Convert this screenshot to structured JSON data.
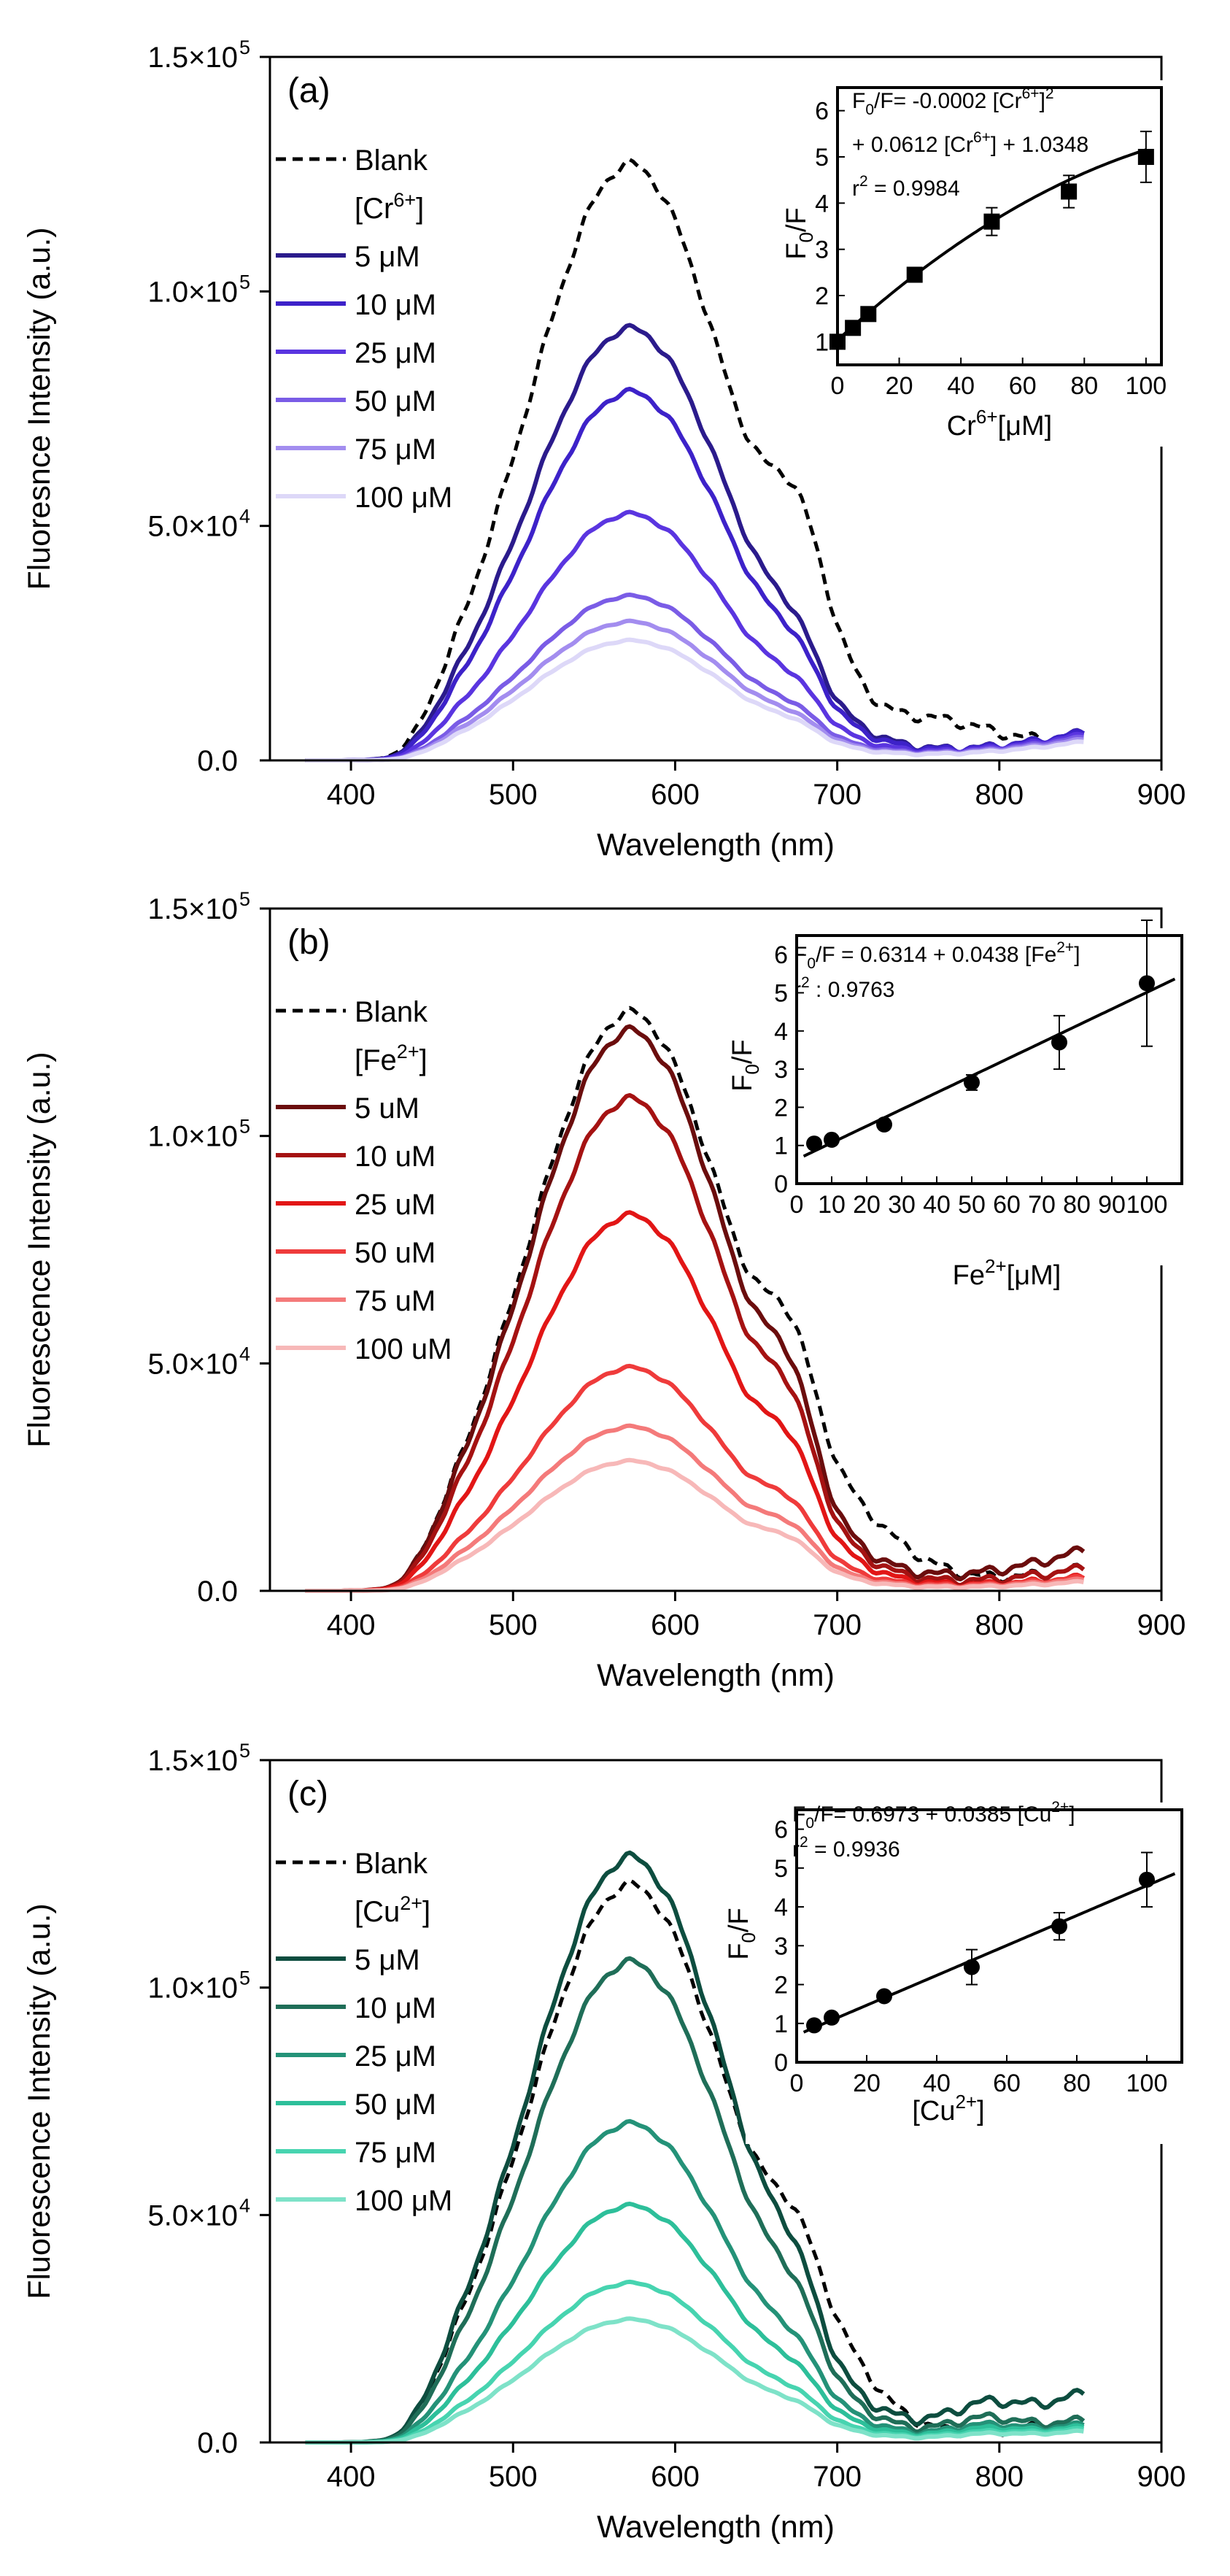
{
  "chart_data": [
    {
      "type": "line",
      "panel_label": "(a)",
      "xlabel": "Wavelength (nm)",
      "ylabel": "Fluoresnce Intensity (a.u.)",
      "xlim": [
        350,
        900
      ],
      "ylim": [
        0,
        150000
      ],
      "xticks": [
        400,
        500,
        600,
        700,
        800,
        900
      ],
      "yticks": [
        {
          "value": 0,
          "label": "0.0"
        },
        {
          "value": 50000,
          "label": "5.0×10",
          "exp": "4"
        },
        {
          "value": 100000,
          "label": "1.0×10",
          "exp": "5"
        },
        {
          "value": 150000,
          "label": "1.5×10",
          "exp": "5"
        }
      ],
      "legend": {
        "blank_label": "Blank",
        "header": {
          "pre": "[Cr",
          "sup": "6+",
          "post": "]"
        },
        "entries": [
          "5 μM",
          "10 μM",
          "25 μM",
          "50 μM",
          "75 μM",
          "100 μM"
        ]
      },
      "blank": {
        "name": "Blank",
        "color": "#000000",
        "peak": 127000,
        "end": 5000,
        "curve": "a_blank"
      },
      "series": [
        {
          "name": "5 μM",
          "color": "#2b1b8c",
          "peak": 92000,
          "end": 6000,
          "curve": "a"
        },
        {
          "name": "10 μM",
          "color": "#3d22c9",
          "peak": 78500,
          "end": 6000,
          "curve": "a"
        },
        {
          "name": "25 μM",
          "color": "#5a35e0",
          "peak": 52500,
          "end": 5500,
          "curve": "a"
        },
        {
          "name": "50 μM",
          "color": "#7a5ce6",
          "peak": 35000,
          "end": 5000,
          "curve": "a"
        },
        {
          "name": "75 μM",
          "color": "#a38def",
          "peak": 29500,
          "end": 4500,
          "curve": "a"
        },
        {
          "name": "100 μM",
          "color": "#ddd8f8",
          "peak": 25500,
          "end": 4000,
          "curve": "a"
        }
      ],
      "inset": {
        "type": "scatter",
        "xlabel": {
          "pre": "Cr",
          "sup": "6+",
          "post": "[μM]"
        },
        "ylabel": {
          "pre": "F",
          "sub": "0",
          "post": "/F"
        },
        "xlim": [
          0,
          105
        ],
        "ylim": [
          0.5,
          6.5
        ],
        "xticks": [
          0,
          20,
          40,
          60,
          80,
          100
        ],
        "yticks": [
          1,
          2,
          3,
          4,
          5,
          6
        ],
        "marker": "square",
        "x": [
          0,
          5,
          10,
          25,
          50,
          75,
          100
        ],
        "y": [
          1.0,
          1.3,
          1.6,
          2.45,
          3.6,
          4.25,
          5.0
        ],
        "err": [
          0.12,
          0.1,
          0.1,
          0.15,
          0.3,
          0.35,
          0.55
        ],
        "fit": {
          "kind": "quadratic",
          "a": -0.0002,
          "b": 0.0612,
          "c": 1.0348
        },
        "equation_lines": [
          [
            {
              "t": "F"
            },
            {
              "t": "0",
              "s": "sub"
            },
            {
              "t": "/F= -0.0002 [Cr"
            },
            {
              "t": "6+",
              "s": "sup"
            },
            {
              "t": "]"
            },
            {
              "t": "2",
              "s": "sup"
            }
          ],
          [
            {
              "t": "+ 0.0612 [Cr"
            },
            {
              "t": "6+",
              "s": "sup"
            },
            {
              "t": "] + 1.0348"
            }
          ],
          [
            {
              "t": "r"
            },
            {
              "t": "2",
              "s": "sup"
            },
            {
              "t": "  = 0.9984"
            }
          ]
        ]
      }
    },
    {
      "type": "line",
      "panel_label": "(b)",
      "xlabel": "Wavelength (nm)",
      "ylabel": "Fluorescence Intensity (a.u.)",
      "xlim": [
        350,
        900
      ],
      "ylim": [
        0,
        150000
      ],
      "xticks": [
        400,
        500,
        600,
        700,
        800,
        900
      ],
      "yticks": [
        {
          "value": 0,
          "label": "0.0"
        },
        {
          "value": 50000,
          "label": "5.0×10",
          "exp": "4"
        },
        {
          "value": 100000,
          "label": "1.0×10",
          "exp": "5"
        },
        {
          "value": 150000,
          "label": "1.5×10",
          "exp": "5"
        }
      ],
      "legend": {
        "blank_label": "Blank",
        "header": {
          "pre": "[Fe",
          "sup": "2+",
          "post": "]"
        },
        "entries": [
          "5 uM",
          "10 uM",
          "25 uM",
          "50 uM",
          "75 uM",
          "100 uM"
        ]
      },
      "blank": {
        "name": "Blank",
        "color": "#000000",
        "peak": 127000,
        "end": 5000,
        "curve": "b_blank"
      },
      "series": [
        {
          "name": "5 uM",
          "color": "#6b0d0d",
          "peak": 123000,
          "end": 9000,
          "curve": "b"
        },
        {
          "name": "10 uM",
          "color": "#a51212",
          "peak": 108000,
          "end": 5000,
          "curve": "b"
        },
        {
          "name": "25 uM",
          "color": "#e21616",
          "peak": 82500,
          "end": 3000,
          "curve": "b"
        },
        {
          "name": "50 uM",
          "color": "#ef3b3b",
          "peak": 49000,
          "end": 3000,
          "curve": "b"
        },
        {
          "name": "75 uM",
          "color": "#f47a7a",
          "peak": 36000,
          "end": 2500,
          "curve": "b"
        },
        {
          "name": "100 uM",
          "color": "#f7b8b8",
          "peak": 28500,
          "end": 2000,
          "curve": "b"
        }
      ],
      "inset": {
        "type": "scatter",
        "xlabel": {
          "pre": "Fe",
          "sup": "2+",
          "post": "[μM]"
        },
        "ylabel": {
          "pre": "F",
          "sub": "0",
          "post": "/F"
        },
        "xlim": [
          0,
          110
        ],
        "ylim": [
          0,
          6.5
        ],
        "xticks": [
          0,
          10,
          20,
          30,
          40,
          50,
          60,
          70,
          80,
          90,
          100
        ],
        "yticks": [
          0,
          1,
          2,
          3,
          4,
          5,
          6
        ],
        "marker": "circle",
        "x": [
          5,
          10,
          25,
          50,
          75,
          100
        ],
        "y": [
          1.05,
          1.15,
          1.55,
          2.65,
          3.7,
          5.25
        ],
        "err": [
          0.08,
          0.08,
          0.12,
          0.2,
          0.7,
          1.65
        ],
        "fit": {
          "kind": "linear",
          "a": 0.0438,
          "b": 0.6314
        },
        "equation_lines": [
          [
            {
              "t": "F"
            },
            {
              "t": "0",
              "s": "sub"
            },
            {
              "t": "/F = 0.6314 + 0.0438 [Fe"
            },
            {
              "t": "2+",
              "s": "sup"
            },
            {
              "t": "]"
            }
          ],
          [
            {
              "t": "r"
            },
            {
              "t": "2",
              "s": "sup"
            },
            {
              "t": " : 0.9763"
            }
          ]
        ]
      }
    },
    {
      "type": "line",
      "panel_label": "(c)",
      "xlabel": "Wavelength (nm)",
      "ylabel": "Fluorescence Intensity (a.u.)",
      "xlim": [
        350,
        900
      ],
      "ylim": [
        0,
        150000
      ],
      "xticks": [
        400,
        500,
        600,
        700,
        800,
        900
      ],
      "yticks": [
        {
          "value": 0,
          "label": "0.0"
        },
        {
          "value": 50000,
          "label": "5.0×10",
          "exp": "4"
        },
        {
          "value": 100000,
          "label": "1.0×10",
          "exp": "5"
        },
        {
          "value": 150000,
          "label": "1.5×10",
          "exp": "5"
        }
      ],
      "legend": {
        "blank_label": "Blank",
        "header": {
          "pre": "[Cu",
          "sup": "2+",
          "post": "]"
        },
        "entries": [
          "5 μM",
          "10 μM",
          "25 μM",
          "50 μM",
          "75 μM",
          "100 μM"
        ]
      },
      "blank": {
        "name": "Blank",
        "color": "#000000",
        "peak": 122500,
        "end": 5000,
        "curve": "c_blank"
      },
      "series": [
        {
          "name": "5 μM",
          "color": "#0d4d3f",
          "peak": 128500,
          "end": 11000,
          "curve": "c"
        },
        {
          "name": "10 μM",
          "color": "#1f6e58",
          "peak": 105500,
          "end": 5000,
          "curve": "c"
        },
        {
          "name": "25 μM",
          "color": "#249278",
          "peak": 70000,
          "end": 4000,
          "curve": "c"
        },
        {
          "name": "50 μM",
          "color": "#2dbf9a",
          "peak": 52000,
          "end": 3500,
          "curve": "c"
        },
        {
          "name": "75 μM",
          "color": "#47d4b0",
          "peak": 35000,
          "end": 3000,
          "curve": "c"
        },
        {
          "name": "100 μM",
          "color": "#7ee2c8",
          "peak": 27000,
          "end": 2500,
          "curve": "c"
        }
      ],
      "inset": {
        "type": "scatter",
        "xlabel": {
          "pre": "[Cu",
          "sup": "2+",
          "post": "]"
        },
        "ylabel": {
          "pre": "F",
          "sub": "0",
          "post": "/F"
        },
        "xlim": [
          0,
          110
        ],
        "ylim": [
          0,
          6.5
        ],
        "xticks": [
          0,
          20,
          40,
          60,
          80,
          100
        ],
        "yticks": [
          0,
          1,
          2,
          3,
          4,
          5,
          6
        ],
        "marker": "circle",
        "x": [
          5,
          10,
          25,
          50,
          75,
          100
        ],
        "y": [
          0.95,
          1.15,
          1.7,
          2.45,
          3.5,
          4.7
        ],
        "err": [
          0.07,
          0.08,
          0.1,
          0.45,
          0.35,
          0.7
        ],
        "fit": {
          "kind": "linear",
          "a": 0.0385,
          "b": 0.6973
        },
        "equation_lines": [
          [
            {
              "t": "F"
            },
            {
              "t": "0",
              "s": "sub"
            },
            {
              "t": "/F= 0.6973 + 0.0385 [Cu"
            },
            {
              "t": "2+",
              "s": "sup"
            },
            {
              "t": "]"
            }
          ],
          [
            {
              "t": "r"
            },
            {
              "t": "2",
              "s": "sup"
            },
            {
              "t": " = 0.9936"
            }
          ]
        ]
      }
    }
  ]
}
